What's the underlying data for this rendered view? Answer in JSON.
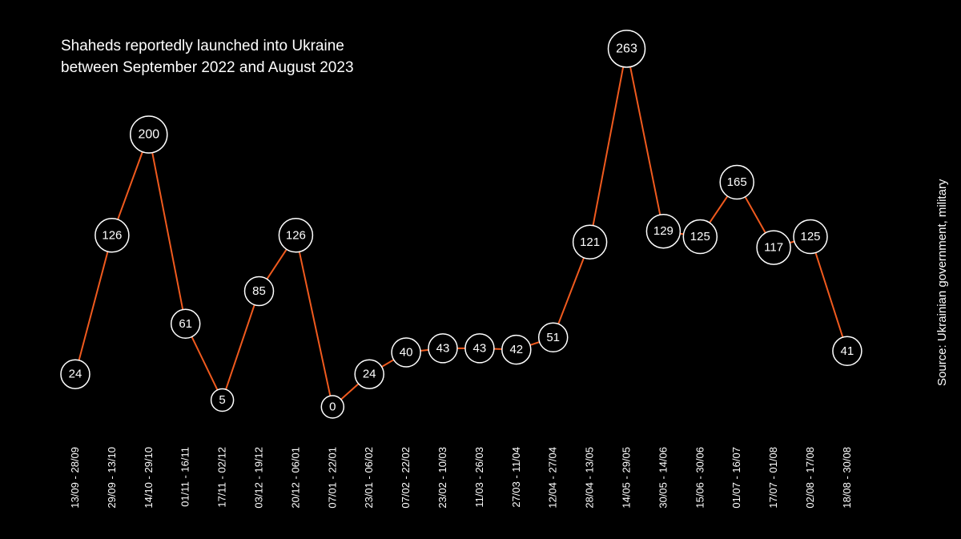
{
  "chart_data": {
    "type": "line",
    "title": "Shaheds reportedly launched into Ukraine",
    "subtitle": "between September 2022 and August 2023",
    "source": "Source: Ukrainian government, military",
    "categories": [
      "13/09 - 28/09",
      "29/09 - 13/10",
      "14/10 - 29/10",
      "01/11 - 16/11",
      "17/11 - 02/12",
      "03/12 - 19/12",
      "20/12 - 06/01",
      "07/01 - 22/01",
      "23/01 - 06/02",
      "07/02 - 22/02",
      "23/02 - 10/03",
      "11/03 - 26/03",
      "27/03 - 11/04",
      "12/04 - 27/04",
      "28/04 - 13/05",
      "14/05 - 29/05",
      "30/05 - 14/06",
      "15/06 - 30/06",
      "01/07 - 16/07",
      "17/07 - 01/08",
      "02/08 - 17/08",
      "18/08 - 30/08"
    ],
    "values": [
      24,
      126,
      200,
      61,
      5,
      85,
      126,
      0,
      24,
      40,
      43,
      43,
      42,
      51,
      121,
      263,
      129,
      125,
      165,
      117,
      125,
      41
    ],
    "xlabel": "",
    "ylabel": "",
    "grid": false,
    "colors": {
      "line": "#f05a1e",
      "marker_fill": "#000000",
      "marker_stroke": "#ffffff",
      "text": "#ffffff",
      "background": "#000000"
    }
  }
}
